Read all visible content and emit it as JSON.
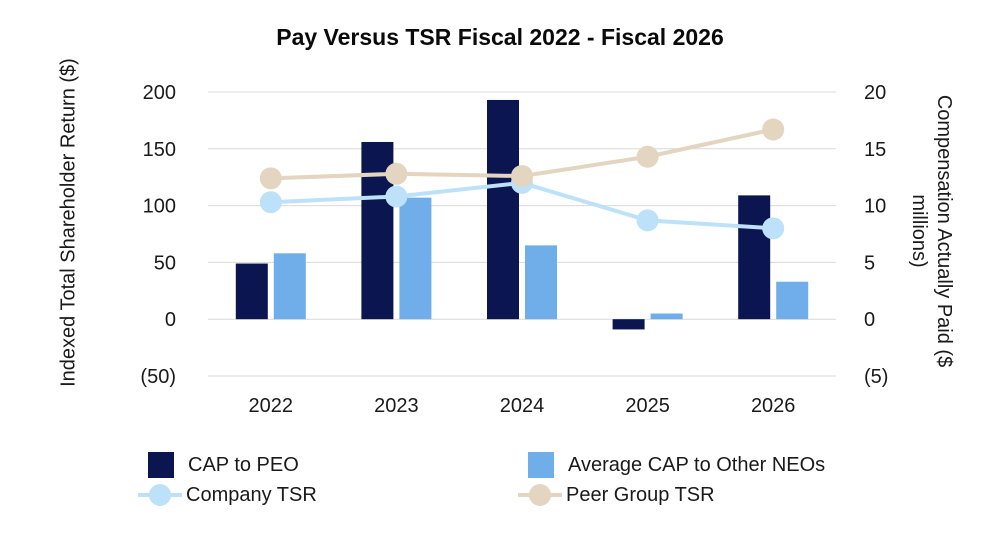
{
  "chart_data": {
    "type": "bar",
    "title": "Pay Versus TSR Fiscal 2022 - Fiscal 2026",
    "categories": [
      "2022",
      "2023",
      "2024",
      "2025",
      "2026"
    ],
    "y_left": {
      "label": "Indexed Total Shareholder Return ($)",
      "ticks": [
        "200",
        "150",
        "100",
        "50",
        "0",
        "(50)"
      ],
      "range": [
        -50,
        200
      ]
    },
    "y_right": {
      "label": "Compensation Actually Paid ($ millions)",
      "ticks": [
        "20",
        "15",
        "10",
        "5",
        "0",
        "(5)"
      ],
      "range": [
        -5,
        20
      ]
    },
    "grid": true,
    "legend_position": "bottom",
    "series": [
      {
        "name": "CAP to PEO",
        "kind": "bar",
        "axis": "right",
        "color": "#0b1650",
        "values": [
          4.9,
          15.6,
          19.3,
          -0.9,
          10.9
        ]
      },
      {
        "name": "Average CAP to Other NEOs",
        "kind": "bar",
        "axis": "right",
        "color": "#6faee8",
        "values": [
          5.8,
          10.7,
          6.5,
          0.5,
          3.3
        ]
      },
      {
        "name": "Company TSR",
        "kind": "line",
        "axis": "left",
        "color": "#bde1f8",
        "values": [
          103,
          108,
          120,
          87,
          80
        ]
      },
      {
        "name": "Peer Group TSR",
        "kind": "line",
        "axis": "left",
        "color": "#e3d5c0",
        "values": [
          124,
          128,
          126,
          143,
          167
        ]
      }
    ]
  }
}
